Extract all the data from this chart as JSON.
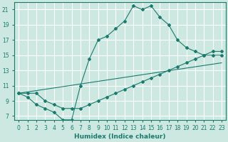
{
  "xlabel": "Humidex (Indice chaleur)",
  "bg_color": "#cce8e0",
  "grid_color": "#ffffff",
  "line_color": "#1a7a6e",
  "xlim": [
    -0.5,
    23.5
  ],
  "ylim": [
    6.5,
    22
  ],
  "yticks": [
    7,
    9,
    11,
    13,
    15,
    17,
    19,
    21
  ],
  "xticks": [
    0,
    1,
    2,
    3,
    4,
    5,
    6,
    7,
    8,
    9,
    10,
    11,
    12,
    13,
    14,
    15,
    16,
    17,
    18,
    19,
    20,
    21,
    22,
    23
  ],
  "series": [
    {
      "x": [
        0,
        1,
        2,
        3,
        4,
        5,
        6,
        7,
        8,
        9,
        10,
        11,
        12,
        13,
        14,
        15,
        16,
        17,
        18,
        19,
        20,
        21,
        22,
        23
      ],
      "y": [
        10,
        9.5,
        8.5,
        8,
        7.5,
        6.5,
        6.5,
        11,
        14.5,
        17,
        17.5,
        18.5,
        19.5,
        21.5,
        21,
        21.5,
        20,
        19,
        17,
        16,
        15.5,
        15,
        15,
        15
      ]
    },
    {
      "x": [
        0,
        1,
        2,
        3,
        4,
        5,
        6,
        7,
        8,
        9,
        10,
        11,
        12,
        13,
        14,
        15,
        16,
        17,
        18,
        19,
        20,
        21,
        22,
        23
      ],
      "y": [
        10,
        10,
        10,
        9,
        8.5,
        8,
        8,
        8,
        8.5,
        9,
        9.5,
        10,
        10.5,
        11,
        11.5,
        12,
        12.5,
        13,
        13.5,
        14,
        14.5,
        15,
        15.5,
        15.5
      ]
    },
    {
      "x": [
        0,
        23
      ],
      "y": [
        10,
        14
      ]
    }
  ]
}
